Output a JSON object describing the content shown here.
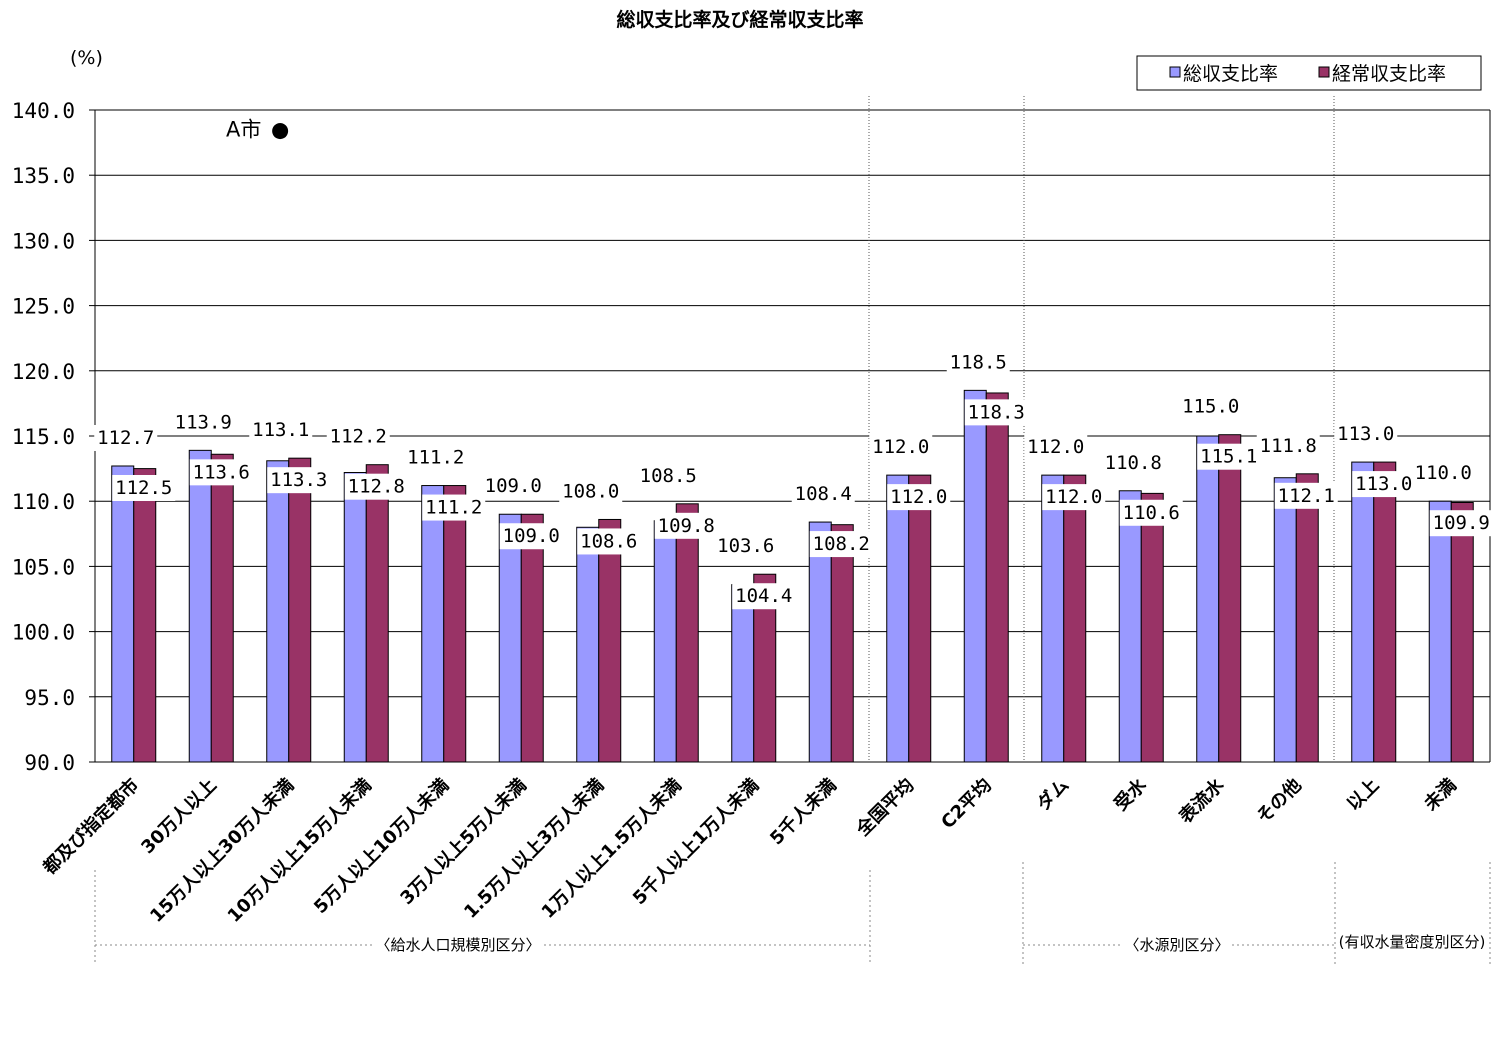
{
  "chart_data": {
    "type": "bar",
    "title": "総収支比率及び経常収支比率",
    "ylabel": "(%)",
    "ylim": [
      90,
      140
    ],
    "yticks": [
      "140.0",
      "135.0",
      "130.0",
      "125.0",
      "120.0",
      "115.0",
      "110.0",
      "105.0",
      "100.0",
      "95.0",
      "90.0"
    ],
    "grid": true,
    "legend_position": "top-right",
    "categories": [
      "都及び指定都市",
      "30万人以上",
      "15万人以上30万人未満",
      "10万人以上15万人未満",
      "5万人以上10万人未満",
      "3万人以上5万人未満",
      "1.5万人以上3万人未満",
      "1万人以上1.5万人未満",
      "5千人以上1万人未満",
      "5千人未満",
      "全国平均",
      "C2平均",
      "ダム",
      "受水",
      "表流水",
      "その他",
      "以上",
      "未満"
    ],
    "series": [
      {
        "name": "総収支比率",
        "color": "#9999ff",
        "values": [
          112.7,
          113.9,
          113.1,
          112.2,
          111.2,
          109.0,
          108.0,
          108.5,
          103.6,
          108.4,
          112.0,
          118.5,
          112.0,
          110.8,
          115.0,
          111.8,
          113.0,
          110.0
        ]
      },
      {
        "name": "経常収支比率",
        "color": "#993366",
        "values": [
          112.5,
          113.6,
          113.3,
          112.8,
          111.2,
          109.0,
          108.6,
          109.8,
          104.4,
          108.2,
          112.0,
          118.3,
          112.0,
          110.6,
          115.1,
          112.1,
          113.0,
          109.9
        ]
      }
    ],
    "data_labels": {
      "series1": [
        "112.7",
        "113.9",
        "113.1",
        "112.2",
        "111.2",
        "109.0",
        "108.0",
        "108.5",
        "103.6",
        "108.4",
        "112.0",
        "118.5",
        "112.0",
        "110.8",
        "115.0",
        "111.8",
        "113.0",
        "110.0"
      ],
      "series2": [
        "112.5",
        "113.6",
        "113.3",
        "112.8",
        "111.2",
        "109.0",
        "108.6",
        "109.8",
        "104.4",
        "108.2",
        "112.0",
        "118.3",
        "112.0",
        "110.6",
        "115.1",
        "112.1",
        "113.0",
        "109.9"
      ]
    },
    "annotation": {
      "text": "A市",
      "symbol": "●",
      "y": 138.5
    },
    "groups": [
      {
        "label": "〈給水人口規模別区分〉"
      },
      {
        "label": "〈水源別区分〉"
      },
      {
        "label": "(有収水量密度別区分)"
      }
    ]
  }
}
